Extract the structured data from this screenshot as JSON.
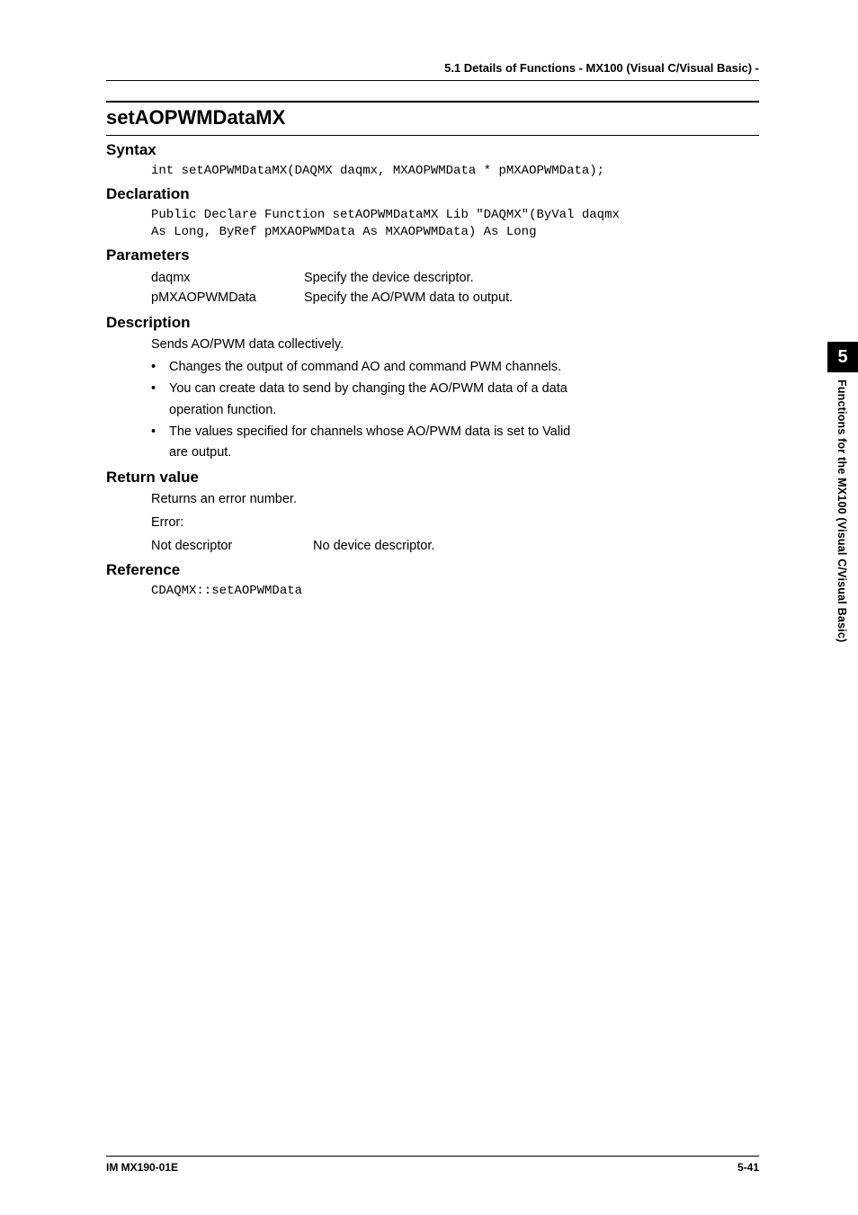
{
  "header": {
    "title": "5.1  Details of Functions - MX100 (Visual C/Visual   Basic) -"
  },
  "func": {
    "name": "setAOPWMDataMX"
  },
  "sections": {
    "syntax": {
      "heading": "Syntax",
      "code": "int setAOPWMDataMX(DAQMX daqmx, MXAOPWMData * pMXAOPWMData);"
    },
    "declaration": {
      "heading": "Declaration",
      "code": "Public Declare Function setAOPWMDataMX Lib \"DAQMX\"(ByVal daqmx\nAs Long, ByRef pMXAOPWMData As MXAOPWMData) As Long"
    },
    "parameters": {
      "heading": "Parameters",
      "rows": [
        {
          "name": "daqmx",
          "desc": "Specify the device descriptor."
        },
        {
          "name": "pMXAOPWMData",
          "desc": "Specify the AO/PWM data to output."
        }
      ]
    },
    "description": {
      "heading": "Description",
      "lead": "Sends AO/PWM data collectively.",
      "bullets": [
        {
          "line1": "Changes the output of command AO and command PWM channels."
        },
        {
          "line1": "You can create data to send by changing the AO/PWM data of a data",
          "line2": "operation function."
        },
        {
          "line1": "The values specified for channels whose AO/PWM data is set to Valid",
          "line2": "are output."
        }
      ]
    },
    "return": {
      "heading": "Return value",
      "line1": "Returns an error number.",
      "line2": "Error:",
      "err": {
        "label": "Not descriptor",
        "text": "No device descriptor."
      }
    },
    "reference": {
      "heading": "Reference",
      "code": "CDAQMX::setAOPWMData"
    }
  },
  "sidetab": {
    "number": "5",
    "label": "Functions for the MX100 (Visual C/Visual Basic)"
  },
  "footer": {
    "left": "IM MX190-01E",
    "right": "5-41"
  },
  "bullet_char": "•"
}
